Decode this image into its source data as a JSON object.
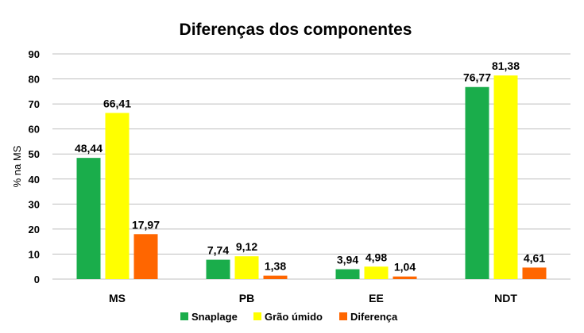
{
  "chart_data": {
    "type": "bar",
    "title": "Diferenças dos componentes",
    "xlabel": "",
    "ylabel": "% na MS",
    "ylim": [
      0,
      90
    ],
    "yticks": [
      0,
      10,
      20,
      30,
      40,
      50,
      60,
      70,
      80,
      90
    ],
    "grid": true,
    "legend_position": "bottom",
    "categories": [
      "MS",
      "PB",
      "EE",
      "NDT"
    ],
    "series": [
      {
        "name": "Snaplage",
        "color": "#1aad4b",
        "values": [
          48.44,
          7.74,
          3.94,
          76.77
        ],
        "labels": [
          "48,44",
          "7,74",
          "3,94",
          "76,77"
        ]
      },
      {
        "name": "Grão úmido",
        "color": "#ffff00",
        "values": [
          66.41,
          9.12,
          4.98,
          81.38
        ],
        "labels": [
          "66,41",
          "9,12",
          "4,98",
          "81,38"
        ]
      },
      {
        "name": "Diferença",
        "color": "#ff6600",
        "values": [
          17.97,
          1.38,
          1.04,
          4.61
        ],
        "labels": [
          "17,97",
          "1,38",
          "1,04",
          "4,61"
        ]
      }
    ]
  }
}
